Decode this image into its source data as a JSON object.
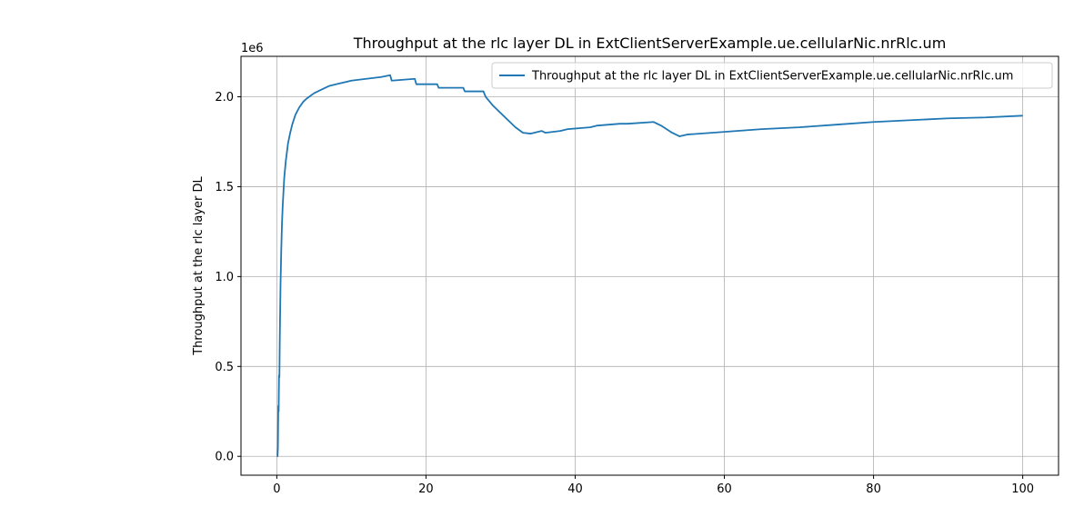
{
  "chart_data": {
    "type": "line",
    "title": "Throughput at the rlc layer DL in ExtClientServerExample.ue.cellularNic.nrRlc.um",
    "xlabel": "",
    "ylabel": "Throughput at the rlc layer DL",
    "y_offset_label": "1e6",
    "xlim": [
      -4.8,
      104.8
    ],
    "ylim": [
      -0.105,
      2.225
    ],
    "x_ticks": [
      0,
      20,
      40,
      60,
      80,
      100
    ],
    "x_tick_labels": [
      "0",
      "20",
      "40",
      "60",
      "80",
      "100"
    ],
    "y_ticks": [
      0.0,
      0.5,
      1.0,
      1.5,
      2.0
    ],
    "y_tick_labels": [
      "0.0",
      "0.5",
      "1.0",
      "1.5",
      "2.0"
    ],
    "grid": true,
    "legend_position": "top-right",
    "colors": {
      "series": "#1f77b4",
      "grid": "#b0b0b0",
      "axes": "#000000",
      "legend_border": "#cccccc"
    },
    "series": [
      {
        "name": "Throughput at the rlc layer DL in ExtClientServerExample.ue.cellularNic.nrRlc.um",
        "x": [
          0.05,
          0.1,
          0.15,
          0.2,
          0.25,
          0.3,
          0.35,
          0.4,
          0.45,
          0.5,
          0.6,
          0.7,
          0.8,
          1.0,
          1.2,
          1.5,
          1.8,
          2.1,
          2.5,
          3.0,
          3.5,
          4.0,
          5.0,
          6.0,
          7.0,
          8.0,
          10.0,
          12.0,
          14.0,
          15.2,
          15.4,
          18.5,
          18.7,
          21.5,
          21.7,
          25.0,
          25.2,
          27.7,
          28.0,
          29.0,
          31.0,
          32.0,
          33.0,
          34.0,
          35.5,
          36.0,
          38.0,
          39.0,
          42.0,
          43.0,
          46.0,
          47.0,
          50.5,
          51.5,
          53.0,
          54.0,
          55.0,
          60.0,
          65.0,
          70.0,
          75.0,
          80.0,
          85.0,
          90.0,
          95.0,
          100.0
        ],
        "values": [
          0.0,
          0.0,
          0.05,
          0.28,
          0.25,
          0.45,
          0.44,
          0.65,
          0.8,
          0.95,
          1.15,
          1.3,
          1.4,
          1.55,
          1.64,
          1.74,
          1.8,
          1.85,
          1.9,
          1.94,
          1.97,
          1.99,
          2.02,
          2.04,
          2.06,
          2.07,
          2.09,
          2.1,
          2.11,
          2.12,
          2.09,
          2.1,
          2.07,
          2.07,
          2.05,
          2.05,
          2.03,
          2.03,
          2.0,
          1.95,
          1.87,
          1.83,
          1.8,
          1.795,
          1.81,
          1.8,
          1.81,
          1.82,
          1.83,
          1.84,
          1.85,
          1.85,
          1.86,
          1.84,
          1.8,
          1.78,
          1.79,
          1.805,
          1.82,
          1.83,
          1.845,
          1.86,
          1.87,
          1.88,
          1.885,
          1.895
        ]
      }
    ]
  }
}
